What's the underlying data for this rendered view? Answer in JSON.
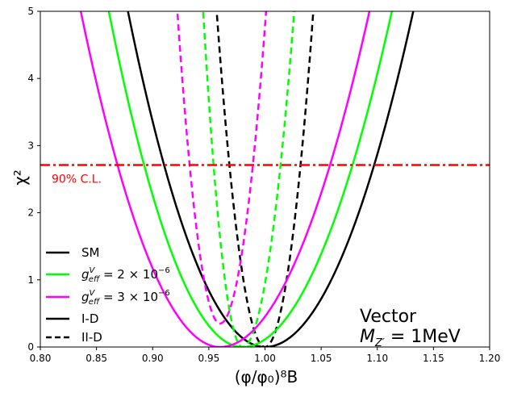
{
  "chart_data": {
    "type": "line",
    "xlabel": "(φ/φ₀)⁸B",
    "ylabel": "χ²",
    "xlim": [
      0.8,
      1.2
    ],
    "ylim": [
      0,
      5
    ],
    "xticks": [
      "0.80",
      "0.85",
      "0.90",
      "0.95",
      "1.00",
      "1.05",
      "1.10",
      "1.15",
      "1.20"
    ],
    "yticks": [
      "0",
      "1",
      "2",
      "3",
      "4",
      "5"
    ],
    "cl_line": {
      "y": 2.71,
      "label": "90% C.L.",
      "color": "#ff0000"
    },
    "annotation": {
      "line1": "Vector",
      "line2_prefix": "M",
      "line2_sub": "Z′",
      "line2_suffix": " = 1MeV"
    },
    "legend": [
      {
        "label": "SM",
        "color": "#000000",
        "style": "solid"
      },
      {
        "label": "g_eff^V = 2 × 10⁻⁶",
        "main": "g",
        "sup": "V",
        "sub": "eff",
        "rest": " = 2 × 10",
        "exp": "−6",
        "color": "#00ff00",
        "style": "solid"
      },
      {
        "label": "g_eff^V = 3 × 10⁻⁶",
        "main": "g",
        "sup": "V",
        "sub": "eff",
        "rest": " = 3 × 10",
        "exp": "−6",
        "color": "#ff00ff",
        "style": "solid"
      },
      {
        "label": "I-D",
        "color": "#000000",
        "style": "solid"
      },
      {
        "label": "II-D",
        "color": "#000000",
        "style": "dashed"
      }
    ],
    "series": [
      {
        "name": "SM I-D",
        "color": "#000000",
        "style": "solid",
        "center": 1.0,
        "x_at_chi2_5": [
          0.878,
          1.132
        ]
      },
      {
        "name": "SM II-D",
        "color": "#000000",
        "style": "dashed",
        "center": 1.0,
        "x_at_chi2_5": [
          0.957,
          1.043
        ]
      },
      {
        "name": "g=2e-6 I-D",
        "color": "#00ff00",
        "style": "solid",
        "center": 0.98,
        "x_at_chi2_5": [
          0.861,
          1.113
        ]
      },
      {
        "name": "g=2e-6 II-D",
        "color": "#00ff00",
        "style": "dashed",
        "center": 0.98,
        "x_at_chi2_5": [
          0.945,
          1.026
        ]
      },
      {
        "name": "g=3e-6 I-D",
        "color": "#ff00ff",
        "style": "solid",
        "center": 0.96,
        "x_at_chi2_5": [
          0.836,
          1.093
        ]
      },
      {
        "name": "g=3e-6 II-D",
        "color": "#ff00ff",
        "style": "dashed",
        "center": 0.96,
        "x_at_chi2_5": [
          0.922,
          1.001
        ],
        "min_chi2": 0.35
      }
    ]
  }
}
